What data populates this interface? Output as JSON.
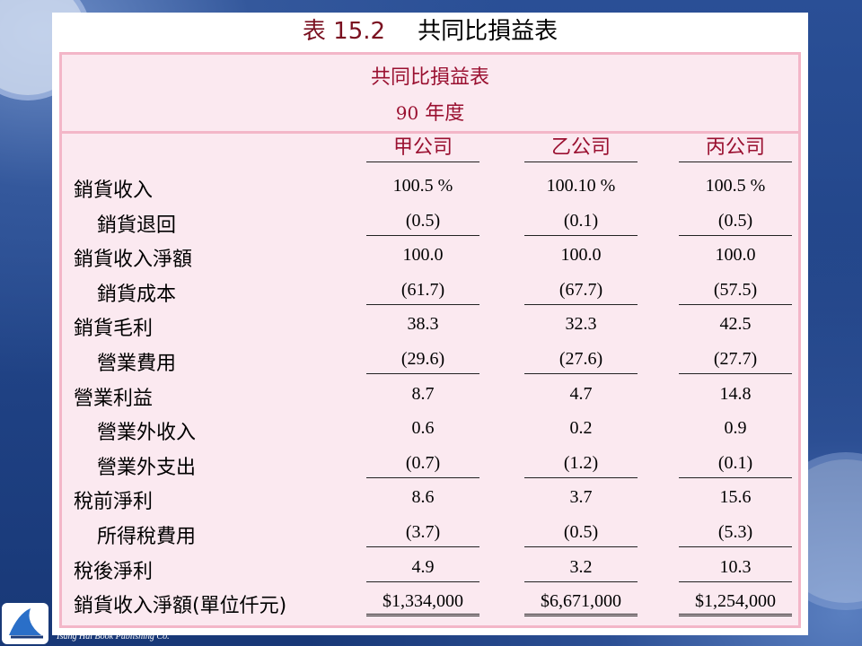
{
  "slide": {
    "table_number": "表 15.2",
    "title": "共同比損益表"
  },
  "statement": {
    "heading": "共同比損益表",
    "year_number": "90",
    "year_suffix": "年度",
    "columns": [
      "甲公司",
      "乙公司",
      "丙公司"
    ],
    "rows": [
      {
        "label": "銷貨收入",
        "indent": false,
        "values": [
          "100.5 %",
          "100.10 %",
          "100.5 %"
        ],
        "rule": ""
      },
      {
        "label": "銷貨退回",
        "indent": true,
        "values": [
          "(0.5)",
          "(0.1)",
          "(0.5)"
        ],
        "rule": "single"
      },
      {
        "label": "銷貨收入淨額",
        "indent": false,
        "values": [
          "100.0",
          "100.0",
          "100.0"
        ],
        "rule": ""
      },
      {
        "label": "銷貨成本",
        "indent": true,
        "values": [
          "(61.7)",
          "(67.7)",
          "(57.5)"
        ],
        "rule": "single"
      },
      {
        "label": "銷貨毛利",
        "indent": false,
        "values": [
          "38.3",
          "32.3",
          "42.5"
        ],
        "rule": ""
      },
      {
        "label": "營業費用",
        "indent": true,
        "values": [
          "(29.6)",
          "(27.6)",
          "(27.7)"
        ],
        "rule": "single"
      },
      {
        "label": "營業利益",
        "indent": false,
        "values": [
          "8.7",
          "4.7",
          "14.8"
        ],
        "rule": ""
      },
      {
        "label": "營業外收入",
        "indent": true,
        "values": [
          "0.6",
          "0.2",
          "0.9"
        ],
        "rule": ""
      },
      {
        "label": "營業外支出",
        "indent": true,
        "values": [
          "(0.7)",
          "(1.2)",
          "(0.1)"
        ],
        "rule": "single"
      },
      {
        "label": "稅前淨利",
        "indent": false,
        "values": [
          "8.6",
          "3.7",
          "15.6"
        ],
        "rule": ""
      },
      {
        "label": "所得稅費用",
        "indent": true,
        "values": [
          "(3.7)",
          "(0.5)",
          "(5.3)"
        ],
        "rule": "single"
      },
      {
        "label": "稅後淨利",
        "indent": false,
        "values": [
          "4.9",
          "3.2",
          "10.3"
        ],
        "rule": "single"
      },
      {
        "label": "銷貨收入淨額(單位仟元)",
        "indent": false,
        "values": [
          "$1,334,000",
          "$6,671,000",
          "$1,254,000"
        ],
        "rule": "double"
      }
    ]
  },
  "footer": {
    "publisher": "Tsang Hai Book Publishing Co."
  },
  "colors": {
    "panel_bg": "#fbe9f0",
    "panel_border": "#f3b6c8",
    "heading": "#9a1030",
    "background": "#1a3a78"
  }
}
